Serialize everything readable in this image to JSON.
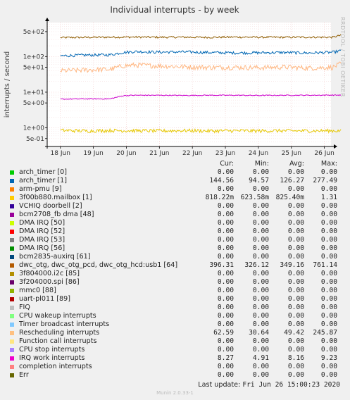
{
  "chart_data": {
    "type": "line",
    "title": "Individual interrupts - by week",
    "ylabel": "interrupts / second",
    "yscale": "log",
    "ylim": [
      0.3,
      900
    ],
    "yticks": [
      {
        "v": 500,
        "label": "5e+02"
      },
      {
        "v": 100,
        "label": "1e+02"
      },
      {
        "v": 50,
        "label": "5e+01"
      },
      {
        "v": 10,
        "label": "1e+01"
      },
      {
        "v": 5,
        "label": "5e+00"
      },
      {
        "v": 1,
        "label": "1e+00"
      },
      {
        "v": 0.5,
        "label": "5e-01"
      }
    ],
    "xticks": [
      "18 Jun",
      "19 Jun",
      "20 Jun",
      "21 Jun",
      "22 Jun",
      "23 Jun",
      "24 Jun",
      "25 Jun",
      "26 Jun"
    ],
    "grid": true,
    "side_label": "RRDTOOL / TOBI OETIKER",
    "series": [
      {
        "name": "dwc_otg, dwc_otg_pcd, dwc_otg_hcd:usb1 [64]",
        "color": "#8f5b00",
        "days": [
          0,
          0.75,
          1.5,
          2.25,
          3,
          3.75,
          4.5,
          5.25,
          6,
          6.75,
          7.5,
          8.25,
          8.5
        ],
        "values": [
          340,
          345,
          350,
          352,
          348,
          350,
          346,
          352,
          349,
          347,
          350,
          348,
          396
        ]
      },
      {
        "name": "arch_timer [1]",
        "color": "#0066b3",
        "days": [
          0,
          0.75,
          1.5,
          1.9,
          2.25,
          3,
          3.75,
          4.5,
          5.25,
          6,
          6.75,
          7.5,
          8.25,
          8.5
        ],
        "values": [
          105,
          110,
          112,
          130,
          138,
          133,
          135,
          130,
          127,
          128,
          130,
          126,
          132,
          145
        ]
      },
      {
        "name": "Rescheduling interrupts",
        "color": "#ffb782",
        "days": [
          0,
          0.75,
          1.5,
          1.9,
          2.25,
          3,
          3.75,
          4.5,
          5.25,
          6,
          6.75,
          7.5,
          8.25,
          8.5
        ],
        "values": [
          40,
          42,
          44,
          55,
          58,
          55,
          52,
          50,
          50,
          49,
          51,
          48,
          50,
          63
        ]
      },
      {
        "name": "IRQ work interrupts",
        "color": "#cc00cc",
        "days": [
          0,
          0.75,
          1.5,
          1.9,
          2.25,
          3,
          3.75,
          4.5,
          5.25,
          6,
          6.75,
          7.5,
          8.25,
          8.5
        ],
        "values": [
          6.4,
          6.5,
          6.5,
          8.0,
          8.2,
          8.2,
          8.1,
          8.2,
          8.2,
          8.1,
          8.2,
          8.2,
          8.3,
          8.27
        ]
      },
      {
        "name": "3f00b880.mailbox [1]",
        "color": "#e6c700",
        "days": [
          0,
          0.75,
          1.5,
          2.25,
          3,
          3.75,
          4.5,
          5.25,
          6,
          6.75,
          7.5,
          8.25,
          8.5
        ],
        "values": [
          0.85,
          0.82,
          0.84,
          0.83,
          0.82,
          0.84,
          0.82,
          0.83,
          0.82,
          0.83,
          0.82,
          0.83,
          0.82
        ]
      }
    ]
  },
  "legend": {
    "headers": {
      "cur": "Cur:",
      "min": "Min:",
      "avg": "Avg:",
      "max": "Max:"
    },
    "rows": [
      {
        "name": "arch_timer [0]",
        "color": "#00cc00",
        "cur": "0.00",
        "min": "0.00",
        "avg": "0.00",
        "max": "0.00"
      },
      {
        "name": "arch_timer [1]",
        "color": "#0066b3",
        "cur": "144.56",
        "min": "94.57",
        "avg": "126.27",
        "max": "277.49"
      },
      {
        "name": "arm-pmu [9]",
        "color": "#ff8000",
        "cur": "0.00",
        "min": "0.00",
        "avg": "0.00",
        "max": "0.00"
      },
      {
        "name": "3f00b880.mailbox [1]",
        "color": "#ffcc00",
        "cur": "818.22m",
        "min": "623.58m",
        "avg": "825.40m",
        "max": "1.31"
      },
      {
        "name": "VCHIQ doorbell [2]",
        "color": "#330099",
        "cur": "0.00",
        "min": "0.00",
        "avg": "0.00",
        "max": "0.00"
      },
      {
        "name": "bcm2708_fb dma [48]",
        "color": "#990099",
        "cur": "0.00",
        "min": "0.00",
        "avg": "0.00",
        "max": "0.00"
      },
      {
        "name": "DMA IRQ [50]",
        "color": "#ccff00",
        "cur": "0.00",
        "min": "0.00",
        "avg": "0.00",
        "max": "0.00"
      },
      {
        "name": "DMA IRQ [52]",
        "color": "#ff0000",
        "cur": "0.00",
        "min": "0.00",
        "avg": "0.00",
        "max": "0.00"
      },
      {
        "name": "DMA IRQ [53]",
        "color": "#808080",
        "cur": "0.00",
        "min": "0.00",
        "avg": "0.00",
        "max": "0.00"
      },
      {
        "name": "DMA IRQ [56]",
        "color": "#008f00",
        "cur": "0.00",
        "min": "0.00",
        "avg": "0.00",
        "max": "0.00"
      },
      {
        "name": "bcm2835-auxirq [61]",
        "color": "#00487d",
        "cur": "0.00",
        "min": "0.00",
        "avg": "0.00",
        "max": "0.00"
      },
      {
        "name": "dwc_otg, dwc_otg_pcd, dwc_otg_hcd:usb1 [64]",
        "color": "#b35a00",
        "cur": "396.31",
        "min": "326.12",
        "avg": "349.16",
        "max": "761.14"
      },
      {
        "name": "3f804000.i2c [85]",
        "color": "#b38f00",
        "cur": "0.00",
        "min": "0.00",
        "avg": "0.00",
        "max": "0.00"
      },
      {
        "name": "3f204000.spi [86]",
        "color": "#6b006b",
        "cur": "0.00",
        "min": "0.00",
        "avg": "0.00",
        "max": "0.00"
      },
      {
        "name": "mmc0 [88]",
        "color": "#8fb300",
        "cur": "0.00",
        "min": "0.00",
        "avg": "0.00",
        "max": "0.00"
      },
      {
        "name": "uart-pl011 [89]",
        "color": "#b30000",
        "cur": "0.00",
        "min": "0.00",
        "avg": "0.00",
        "max": "0.00"
      },
      {
        "name": "FIQ",
        "color": "#bebebe",
        "cur": "0.00",
        "min": "0.00",
        "avg": "0.00",
        "max": "0.00"
      },
      {
        "name": "CPU wakeup interrupts",
        "color": "#80ff80",
        "cur": "0.00",
        "min": "0.00",
        "avg": "0.00",
        "max": "0.00"
      },
      {
        "name": "Timer broadcast interrupts",
        "color": "#80c9ff",
        "cur": "0.00",
        "min": "0.00",
        "avg": "0.00",
        "max": "0.00"
      },
      {
        "name": "Rescheduling interrupts",
        "color": "#ffc080",
        "cur": "62.59",
        "min": "30.64",
        "avg": "49.42",
        "max": "245.87"
      },
      {
        "name": "Function call interrupts",
        "color": "#ffe680",
        "cur": "0.00",
        "min": "0.00",
        "avg": "0.00",
        "max": "0.00"
      },
      {
        "name": "CPU stop interrupts",
        "color": "#aa80ff",
        "cur": "0.00",
        "min": "0.00",
        "avg": "0.00",
        "max": "0.00"
      },
      {
        "name": "IRQ work interrupts",
        "color": "#ee00cc",
        "cur": "8.27",
        "min": "4.91",
        "avg": "8.16",
        "max": "9.23"
      },
      {
        "name": "completion interrupts",
        "color": "#ff8080",
        "cur": "0.00",
        "min": "0.00",
        "avg": "0.00",
        "max": "0.00"
      },
      {
        "name": "Err",
        "color": "#666600",
        "cur": "0.00",
        "min": "0.00",
        "avg": "0.00",
        "max": "0.00"
      }
    ]
  },
  "footer": {
    "update_label": "Last update:",
    "update_value": "Fri Jun 26 15:00:23 2020",
    "version": "Munin 2.0.33-1"
  }
}
